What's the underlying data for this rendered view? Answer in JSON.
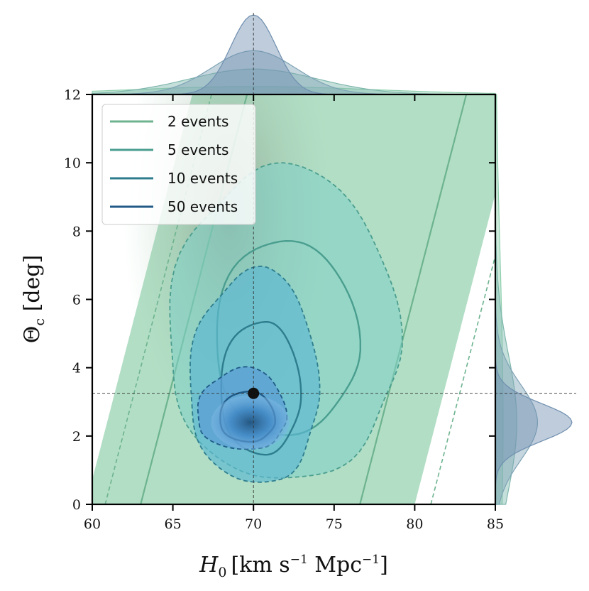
{
  "chart_data": {
    "type": "contour",
    "title": "",
    "xlabel_parts": {
      "symbol": "H",
      "subscript": "0",
      "units": "[km s",
      "sup1": "−1",
      "mid": " Mpc",
      "sup2": "−1",
      "close": "]"
    },
    "ylabel_parts": {
      "symbol": "Θ",
      "subscript": "c",
      "units": " [deg]"
    },
    "xlim": [
      60,
      85
    ],
    "ylim": [
      0,
      12
    ],
    "x_ticks": [
      60,
      65,
      70,
      75,
      80,
      85
    ],
    "y_ticks": [
      0,
      2,
      4,
      6,
      8,
      10,
      12
    ],
    "truth": {
      "H0": 70,
      "theta_c": 3.25
    },
    "legend_position": "top-left",
    "series": [
      {
        "name": "2 events",
        "color": "#6db38f",
        "fill": "#9fd6b6",
        "center": [
          72.0,
          5.5
        ],
        "inner_half_width": 6.8,
        "outer_half_width": 9.0,
        "slope_per_deg": 0.55
      },
      {
        "name": "5 events",
        "color": "#4a9e8f",
        "fill": "#7fcfc6",
        "center": [
          71.8,
          4.6
        ],
        "inner_x": [
          64.7,
          79.0
        ],
        "inner_y": [
          0.7,
          9.9
        ]
      },
      {
        "name": "10 events",
        "color": "#2e7d8e",
        "fill": "#5bb7d2",
        "center": [
          70.5,
          3.2
        ],
        "inner_x": [
          66.0,
          74.0
        ],
        "inner_y": [
          0.6,
          6.9
        ]
      },
      {
        "name": "50 events",
        "color": "#215a87",
        "fill": "#5b9fd4",
        "center": [
          69.6,
          2.5
        ],
        "inner_x": [
          66.5,
          72.0
        ],
        "inner_y": [
          1.6,
          4.0
        ]
      }
    ],
    "marginal_x": {
      "peak": 70,
      "curves": [
        {
          "name": "2 events",
          "height": 0.1
        },
        {
          "name": "5 events",
          "height": 0.32
        },
        {
          "name": "10 events",
          "height": 0.55
        },
        {
          "name": "50 events",
          "height": 1.0
        }
      ]
    },
    "marginal_y": {
      "peak": 2.4,
      "curves": [
        {
          "name": "2 events",
          "height": 0.1
        },
        {
          "name": "5 events",
          "height": 0.28
        },
        {
          "name": "10 events",
          "height": 0.55
        },
        {
          "name": "50 events",
          "height": 1.0
        }
      ]
    }
  }
}
